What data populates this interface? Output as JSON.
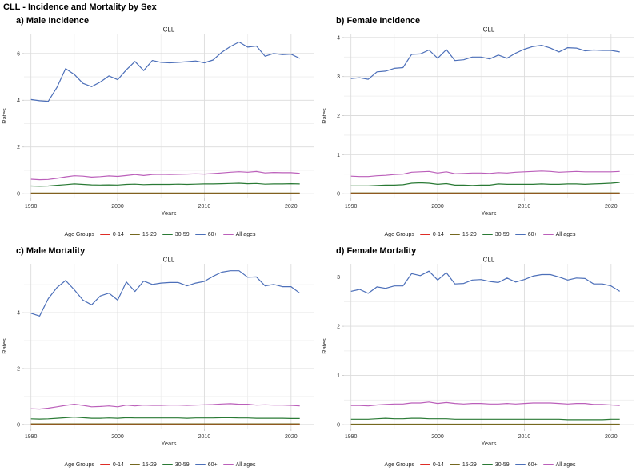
{
  "page_title": "CLL - Incidence and Mortality by Sex",
  "legend_title": "Age Groups",
  "chart_data": [
    {
      "type": "line",
      "panel_label": "a) Male Incidence",
      "title": "CLL",
      "xlabel": "Years",
      "ylabel": "Rates",
      "xlim": [
        1989.2,
        2022.6
      ],
      "ylim": [
        -0.2,
        6.85
      ],
      "xticks": [
        1990,
        2000,
        2010,
        2020
      ],
      "xminor": [
        1995,
        2005,
        2015
      ],
      "yticks": [
        0,
        2,
        4,
        6
      ],
      "yminor": [
        1,
        3,
        5
      ],
      "grid": "on",
      "legend_position": "bottom",
      "x": [
        1990,
        1991,
        1992,
        1993,
        1994,
        1995,
        1996,
        1997,
        1998,
        1999,
        2000,
        2001,
        2002,
        2003,
        2004,
        2005,
        2006,
        2007,
        2008,
        2009,
        2010,
        2011,
        2012,
        2013,
        2014,
        2015,
        2016,
        2017,
        2018,
        2019,
        2020,
        2021
      ],
      "series": [
        {
          "name": "0-14",
          "label": "0-14",
          "color": "#de2d26",
          "values": [
            0.01,
            0.01,
            0.01,
            0.01,
            0.01,
            0.01,
            0.01,
            0.01,
            0.01,
            0.01,
            0.01,
            0.01,
            0.01,
            0.01,
            0.01,
            0.01,
            0.01,
            0.01,
            0.01,
            0.01,
            0.01,
            0.01,
            0.01,
            0.01,
            0.01,
            0.01,
            0.01,
            0.01,
            0.01,
            0.01,
            0.01,
            0.01
          ]
        },
        {
          "name": "15-29",
          "label": "15-29",
          "color": "#75681f",
          "values": [
            0.03,
            0.03,
            0.03,
            0.03,
            0.03,
            0.03,
            0.03,
            0.03,
            0.03,
            0.03,
            0.03,
            0.03,
            0.03,
            0.03,
            0.03,
            0.03,
            0.03,
            0.03,
            0.03,
            0.03,
            0.03,
            0.03,
            0.03,
            0.03,
            0.03,
            0.03,
            0.03,
            0.03,
            0.03,
            0.03,
            0.03,
            0.03
          ]
        },
        {
          "name": "30-59",
          "label": "30-59",
          "color": "#2a7a35",
          "values": [
            0.33,
            0.32,
            0.33,
            0.36,
            0.39,
            0.42,
            0.4,
            0.38,
            0.37,
            0.38,
            0.37,
            0.4,
            0.41,
            0.39,
            0.4,
            0.4,
            0.4,
            0.41,
            0.4,
            0.41,
            0.42,
            0.42,
            0.43,
            0.44,
            0.45,
            0.43,
            0.44,
            0.41,
            0.42,
            0.42,
            0.43,
            0.42
          ]
        },
        {
          "name": "60plus",
          "label": "60+",
          "color": "#4c6fb9",
          "values": [
            4.03,
            3.98,
            3.95,
            4.55,
            5.35,
            5.1,
            4.72,
            4.58,
            4.78,
            5.04,
            4.88,
            5.3,
            5.66,
            5.27,
            5.7,
            5.62,
            5.6,
            5.62,
            5.65,
            5.68,
            5.6,
            5.72,
            6.05,
            6.3,
            6.49,
            6.27,
            6.32,
            5.88,
            6.0,
            5.95,
            5.97,
            5.79
          ]
        },
        {
          "name": "all-ages",
          "label": "All ages",
          "color": "#bb5fba",
          "values": [
            0.62,
            0.6,
            0.61,
            0.66,
            0.72,
            0.77,
            0.75,
            0.71,
            0.73,
            0.76,
            0.74,
            0.78,
            0.82,
            0.78,
            0.82,
            0.83,
            0.82,
            0.83,
            0.84,
            0.85,
            0.84,
            0.86,
            0.89,
            0.92,
            0.94,
            0.92,
            0.95,
            0.89,
            0.91,
            0.9,
            0.9,
            0.87
          ]
        }
      ]
    },
    {
      "type": "line",
      "panel_label": "b) Female Incidence",
      "title": "CLL",
      "xlabel": "Years",
      "ylabel": "Rates",
      "xlim": [
        1989.2,
        2022.6
      ],
      "ylim": [
        -0.12,
        4.1
      ],
      "xticks": [
        1990,
        2000,
        2010,
        2020
      ],
      "xminor": [
        1995,
        2005,
        2015
      ],
      "yticks": [
        0,
        1,
        2,
        3,
        4
      ],
      "yminor": [
        0.5,
        1.5,
        2.5,
        3.5
      ],
      "grid": "on",
      "legend_position": "bottom",
      "x": [
        1990,
        1991,
        1992,
        1993,
        1994,
        1995,
        1996,
        1997,
        1998,
        1999,
        2000,
        2001,
        2002,
        2003,
        2004,
        2005,
        2006,
        2007,
        2008,
        2009,
        2010,
        2011,
        2012,
        2013,
        2014,
        2015,
        2016,
        2017,
        2018,
        2019,
        2020,
        2021
      ],
      "series": [
        {
          "name": "0-14",
          "label": "0-14",
          "color": "#de2d26",
          "values": [
            0.01,
            0.01,
            0.01,
            0.01,
            0.01,
            0.01,
            0.01,
            0.01,
            0.01,
            0.01,
            0.01,
            0.01,
            0.01,
            0.01,
            0.01,
            0.01,
            0.01,
            0.01,
            0.01,
            0.01,
            0.01,
            0.01,
            0.01,
            0.01,
            0.01,
            0.01,
            0.01,
            0.01,
            0.01,
            0.01,
            0.01,
            0.01
          ]
        },
        {
          "name": "15-29",
          "label": "15-29",
          "color": "#75681f",
          "values": [
            0.02,
            0.02,
            0.02,
            0.02,
            0.02,
            0.02,
            0.02,
            0.02,
            0.02,
            0.02,
            0.02,
            0.02,
            0.02,
            0.02,
            0.02,
            0.02,
            0.02,
            0.02,
            0.02,
            0.02,
            0.02,
            0.02,
            0.02,
            0.02,
            0.02,
            0.02,
            0.02,
            0.02,
            0.02,
            0.02,
            0.02,
            0.02
          ]
        },
        {
          "name": "30-59",
          "label": "30-59",
          "color": "#2a7a35",
          "values": [
            0.2,
            0.2,
            0.2,
            0.21,
            0.22,
            0.22,
            0.23,
            0.27,
            0.28,
            0.27,
            0.24,
            0.26,
            0.22,
            0.22,
            0.21,
            0.22,
            0.22,
            0.25,
            0.24,
            0.24,
            0.24,
            0.24,
            0.25,
            0.24,
            0.24,
            0.25,
            0.25,
            0.24,
            0.25,
            0.26,
            0.27,
            0.29
          ]
        },
        {
          "name": "60plus",
          "label": "60+",
          "color": "#4c6fb9",
          "values": [
            2.95,
            2.97,
            2.93,
            3.12,
            3.14,
            3.21,
            3.23,
            3.57,
            3.58,
            3.68,
            3.47,
            3.69,
            3.41,
            3.43,
            3.5,
            3.5,
            3.45,
            3.55,
            3.47,
            3.6,
            3.7,
            3.77,
            3.8,
            3.73,
            3.63,
            3.74,
            3.73,
            3.66,
            3.68,
            3.67,
            3.67,
            3.63
          ]
        },
        {
          "name": "all-ages",
          "label": "All ages",
          "color": "#bb5fba",
          "values": [
            0.45,
            0.44,
            0.44,
            0.46,
            0.47,
            0.49,
            0.5,
            0.55,
            0.56,
            0.57,
            0.53,
            0.56,
            0.51,
            0.52,
            0.53,
            0.53,
            0.52,
            0.54,
            0.53,
            0.55,
            0.56,
            0.57,
            0.58,
            0.57,
            0.55,
            0.56,
            0.57,
            0.56,
            0.56,
            0.56,
            0.56,
            0.57
          ]
        }
      ]
    },
    {
      "type": "line",
      "panel_label": "c) Male Mortality",
      "title": "CLL",
      "xlabel": "Years",
      "ylabel": "Rates",
      "xlim": [
        1989.2,
        2022.6
      ],
      "ylim": [
        -0.15,
        5.75
      ],
      "xticks": [
        1990,
        2000,
        2010,
        2020
      ],
      "xminor": [
        1995,
        2005,
        2015
      ],
      "yticks": [
        0,
        2,
        4
      ],
      "yminor": [
        1,
        3,
        5
      ],
      "grid": "on",
      "legend_position": "bottom",
      "x": [
        1990,
        1991,
        1992,
        1993,
        1994,
        1995,
        1996,
        1997,
        1998,
        1999,
        2000,
        2001,
        2002,
        2003,
        2004,
        2005,
        2006,
        2007,
        2008,
        2009,
        2010,
        2011,
        2012,
        2013,
        2014,
        2015,
        2016,
        2017,
        2018,
        2019,
        2020,
        2021
      ],
      "series": [
        {
          "name": "0-14",
          "label": "0-14",
          "color": "#de2d26",
          "values": [
            0.01,
            0.01,
            0.01,
            0.01,
            0.01,
            0.01,
            0.01,
            0.01,
            0.01,
            0.01,
            0.01,
            0.01,
            0.01,
            0.01,
            0.01,
            0.01,
            0.01,
            0.01,
            0.01,
            0.01,
            0.01,
            0.01,
            0.01,
            0.01,
            0.01,
            0.01,
            0.01,
            0.01,
            0.01,
            0.01,
            0.01,
            0.01
          ]
        },
        {
          "name": "15-29",
          "label": "15-29",
          "color": "#75681f",
          "values": [
            0.02,
            0.02,
            0.02,
            0.02,
            0.02,
            0.02,
            0.02,
            0.02,
            0.02,
            0.02,
            0.02,
            0.02,
            0.02,
            0.02,
            0.02,
            0.02,
            0.02,
            0.02,
            0.02,
            0.02,
            0.02,
            0.02,
            0.02,
            0.02,
            0.02,
            0.02,
            0.02,
            0.02,
            0.02,
            0.02,
            0.02,
            0.02
          ]
        },
        {
          "name": "30-59",
          "label": "30-59",
          "color": "#2a7a35",
          "values": [
            0.2,
            0.19,
            0.2,
            0.22,
            0.24,
            0.26,
            0.24,
            0.22,
            0.22,
            0.23,
            0.22,
            0.24,
            0.23,
            0.23,
            0.23,
            0.23,
            0.23,
            0.23,
            0.22,
            0.23,
            0.23,
            0.23,
            0.24,
            0.24,
            0.23,
            0.23,
            0.22,
            0.22,
            0.22,
            0.22,
            0.21,
            0.21
          ]
        },
        {
          "name": "60plus",
          "label": "60+",
          "color": "#4c6fb9",
          "values": [
            3.98,
            3.88,
            4.5,
            4.9,
            5.15,
            4.82,
            4.45,
            4.28,
            4.6,
            4.7,
            4.45,
            5.1,
            4.76,
            5.13,
            5.01,
            5.06,
            5.08,
            5.08,
            4.96,
            5.06,
            5.12,
            5.3,
            5.45,
            5.5,
            5.5,
            5.27,
            5.28,
            4.96,
            5.01,
            4.93,
            4.93,
            4.7
          ]
        },
        {
          "name": "all-ages",
          "label": "All ages",
          "color": "#bb5fba",
          "values": [
            0.56,
            0.55,
            0.58,
            0.63,
            0.68,
            0.72,
            0.68,
            0.63,
            0.64,
            0.66,
            0.63,
            0.69,
            0.66,
            0.69,
            0.68,
            0.68,
            0.69,
            0.69,
            0.68,
            0.69,
            0.7,
            0.71,
            0.73,
            0.74,
            0.72,
            0.72,
            0.69,
            0.7,
            0.69,
            0.69,
            0.68,
            0.66
          ]
        }
      ]
    },
    {
      "type": "line",
      "panel_label": "d) Female Mortality",
      "title": "CLL",
      "xlabel": "Years",
      "ylabel": "Rates",
      "xlim": [
        1989.2,
        2022.6
      ],
      "ylim": [
        -0.08,
        3.27
      ],
      "xticks": [
        1990,
        2000,
        2010,
        2020
      ],
      "xminor": [
        1995,
        2005,
        2015
      ],
      "yticks": [
        0,
        1,
        2,
        3
      ],
      "yminor": [
        0.5,
        1.5,
        2.5
      ],
      "grid": "on",
      "legend_position": "bottom",
      "x": [
        1990,
        1991,
        1992,
        1993,
        1994,
        1995,
        1996,
        1997,
        1998,
        1999,
        2000,
        2001,
        2002,
        2003,
        2004,
        2005,
        2006,
        2007,
        2008,
        2009,
        2010,
        2011,
        2012,
        2013,
        2014,
        2015,
        2016,
        2017,
        2018,
        2019,
        2020,
        2021
      ],
      "series": [
        {
          "name": "0-14",
          "label": "0-14",
          "color": "#de2d26",
          "values": [
            0.005,
            0.005,
            0.005,
            0.005,
            0.005,
            0.005,
            0.005,
            0.005,
            0.005,
            0.005,
            0.005,
            0.005,
            0.005,
            0.005,
            0.005,
            0.005,
            0.005,
            0.005,
            0.005,
            0.005,
            0.005,
            0.005,
            0.005,
            0.005,
            0.005,
            0.005,
            0.005,
            0.005,
            0.005,
            0.005,
            0.005,
            0.005
          ]
        },
        {
          "name": "15-29",
          "label": "15-29",
          "color": "#75681f",
          "values": [
            0.01,
            0.01,
            0.01,
            0.01,
            0.01,
            0.01,
            0.01,
            0.01,
            0.01,
            0.01,
            0.01,
            0.01,
            0.01,
            0.01,
            0.01,
            0.01,
            0.01,
            0.01,
            0.01,
            0.01,
            0.01,
            0.01,
            0.01,
            0.01,
            0.01,
            0.01,
            0.01,
            0.01,
            0.01,
            0.01,
            0.01,
            0.01
          ]
        },
        {
          "name": "30-59",
          "label": "30-59",
          "color": "#2a7a35",
          "values": [
            0.11,
            0.11,
            0.11,
            0.12,
            0.13,
            0.12,
            0.12,
            0.13,
            0.13,
            0.12,
            0.12,
            0.12,
            0.11,
            0.11,
            0.11,
            0.11,
            0.11,
            0.11,
            0.11,
            0.11,
            0.11,
            0.11,
            0.11,
            0.11,
            0.11,
            0.1,
            0.1,
            0.1,
            0.1,
            0.1,
            0.11,
            0.11
          ]
        },
        {
          "name": "60plus",
          "label": "60+",
          "color": "#4c6fb9",
          "values": [
            2.71,
            2.75,
            2.67,
            2.8,
            2.77,
            2.82,
            2.82,
            3.07,
            3.03,
            3.12,
            2.94,
            3.09,
            2.86,
            2.87,
            2.94,
            2.95,
            2.91,
            2.89,
            2.98,
            2.9,
            2.95,
            3.02,
            3.05,
            3.05,
            3.0,
            2.94,
            2.98,
            2.97,
            2.86,
            2.86,
            2.82,
            2.71
          ]
        },
        {
          "name": "all-ages",
          "label": "All ages",
          "color": "#bb5fba",
          "values": [
            0.39,
            0.39,
            0.38,
            0.4,
            0.41,
            0.42,
            0.42,
            0.44,
            0.44,
            0.46,
            0.43,
            0.45,
            0.43,
            0.42,
            0.43,
            0.43,
            0.42,
            0.42,
            0.43,
            0.42,
            0.43,
            0.44,
            0.44,
            0.44,
            0.43,
            0.42,
            0.43,
            0.43,
            0.41,
            0.41,
            0.4,
            0.39
          ]
        }
      ]
    }
  ],
  "style": {
    "grid_major_color": "#dcdcdc",
    "grid_minor_color": "#ededed",
    "tick_color": "#c4c4c4",
    "background": "#ffffff"
  }
}
